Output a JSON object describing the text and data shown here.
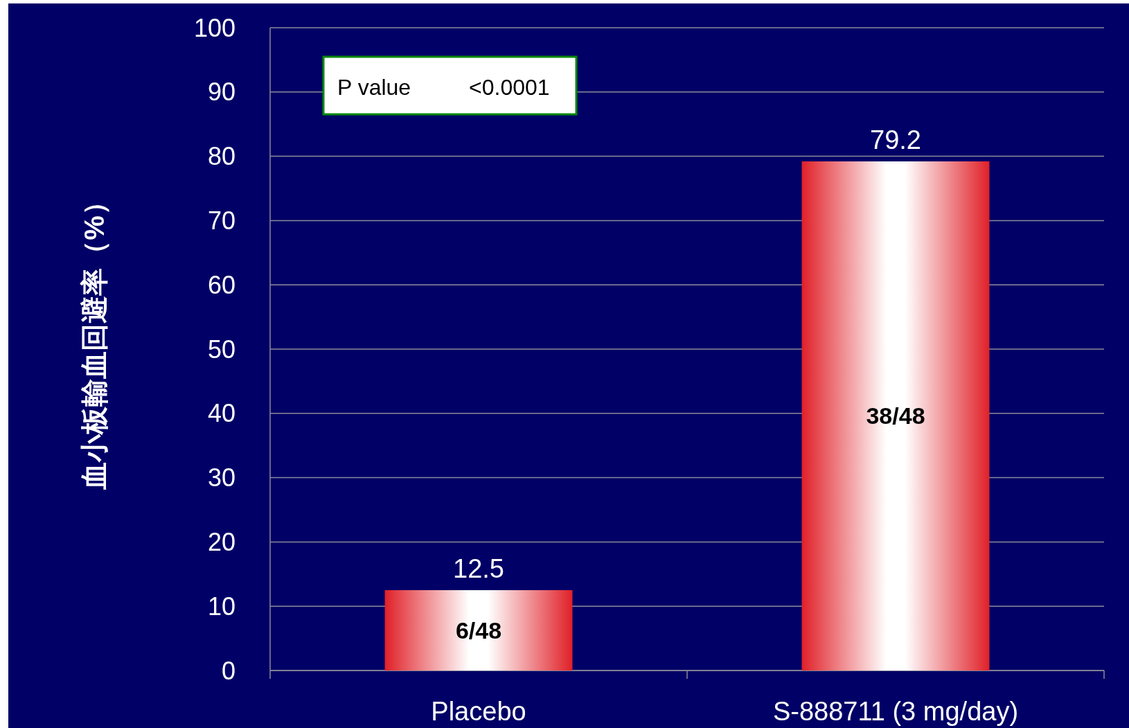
{
  "chart_data": {
    "type": "bar",
    "ylabel": "血小板輸血回避率（%）",
    "categories": [
      "Placebo",
      "S-888711 (3 mg/day)"
    ],
    "values": [
      12.5,
      79.2
    ],
    "color": "#e02028",
    "ylim": [
      0,
      100
    ],
    "yticks": [
      0,
      10,
      20,
      30,
      40,
      50,
      60,
      70,
      80,
      90,
      100
    ],
    "grid": "y",
    "data_labels": true,
    "annotations": [
      "P value",
      "<0.0001",
      "6/48",
      "38/48"
    ]
  }
}
